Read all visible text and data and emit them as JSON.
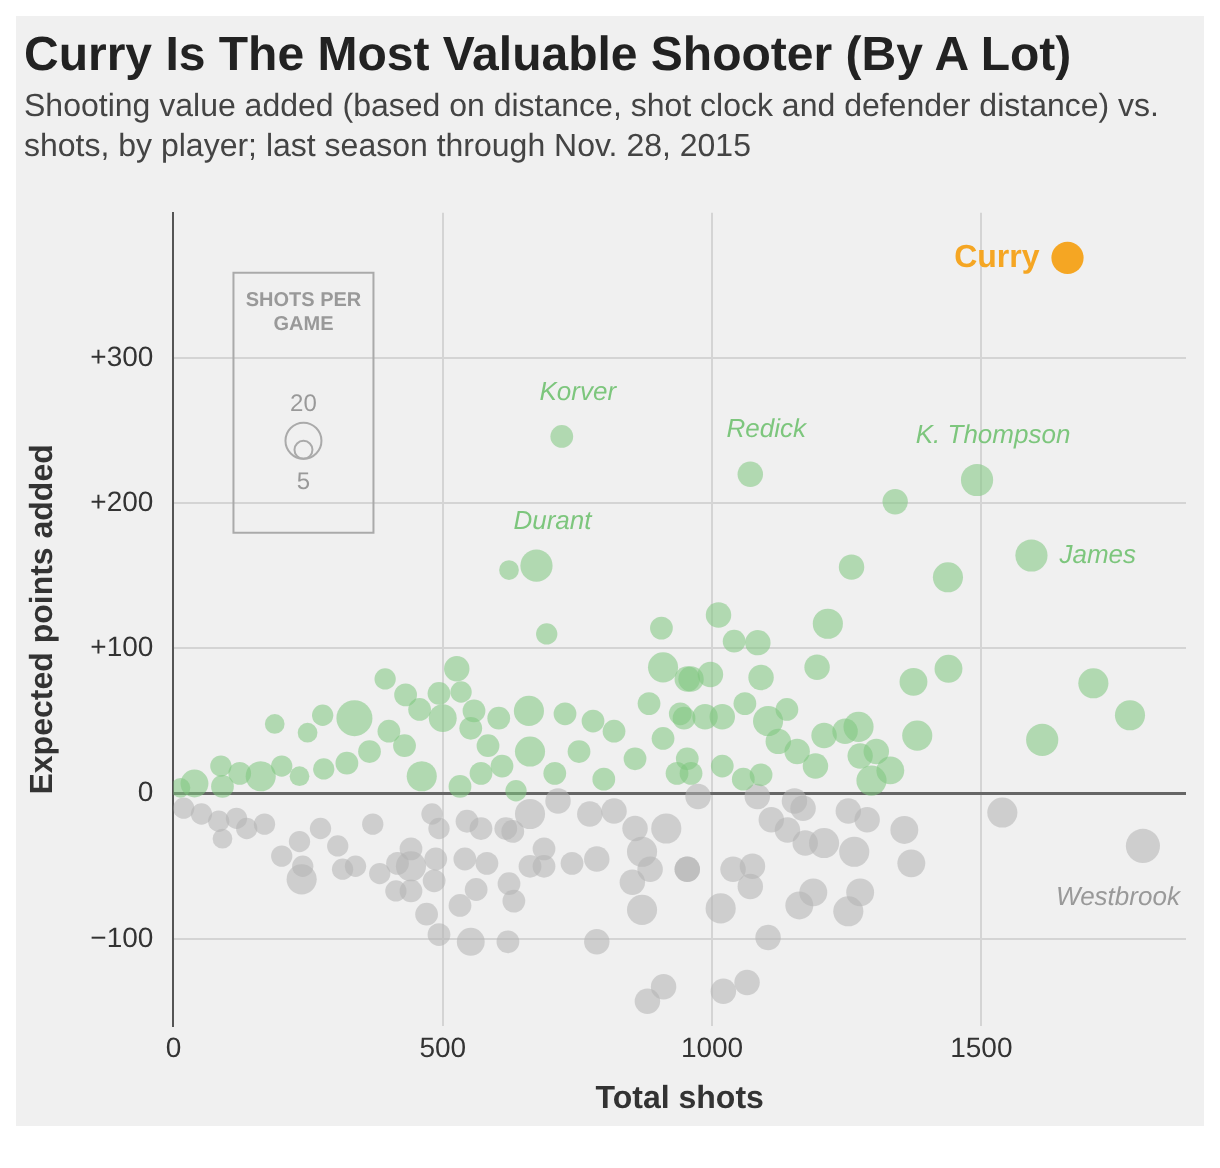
{
  "chart_data": {
    "type": "bubble",
    "title": "Curry Is The Most Valuable Shooter (By A Lot)",
    "subtitle": "Shooting value added (based on distance, shot clock and defender distance) vs. shots, by player; last season through Nov. 28, 2015",
    "xlabel": "Total shots",
    "ylabel": "Expected points added",
    "legend_title": "SHOTS PER GAME",
    "size_legend": [
      20,
      5
    ],
    "xlim": [
      0,
      1880
    ],
    "xticks": [
      0,
      500,
      1000,
      1500
    ],
    "ylim": [
      -160,
      400
    ],
    "yticks": [
      {
        "value": -100,
        "label": "−100"
      },
      0,
      {
        "value": 100,
        "label": "+100"
      },
      {
        "value": 200,
        "label": "+200"
      },
      {
        "value": 300,
        "label": "+300"
      }
    ],
    "grid": true,
    "legend": false,
    "series": [
      {
        "color": "#7dc67d",
        "x": [
          188,
          277,
          249,
          336,
          393,
          431,
          526,
          493,
          534,
          457,
          500,
          400,
          364,
          322,
          279,
          234,
          201,
          162,
          123,
          88,
          39,
          13,
          91,
          461,
          532,
          571,
          610,
          660,
          662,
          727,
          636,
          708,
          753,
          779,
          818,
          799,
          857,
          883,
          909,
          948,
          935,
          584,
          552,
          604,
          429,
          558,
          961,
          997,
          1091,
          1195,
          1374,
          1439,
          1708,
          1776,
          1613,
          1381,
          941,
          987,
          1019,
          1061,
          1104,
          1139,
          1123,
          1158,
          1208,
          1247,
          1272,
          1275,
          1305,
          1331,
          1296,
          1192,
          1091,
          1058,
          1019,
          954,
          961,
          906,
          909,
          954,
          693,
          1259,
          1438,
          1012,
          1041,
          1085,
          1215,
          1340,
          1492,
          1071,
          1593,
          721,
          674,
          623
        ],
        "values": [
          48,
          54,
          42,
          52,
          79,
          68,
          86,
          69,
          70,
          58,
          52,
          43,
          29,
          21,
          17,
          12,
          19,
          12,
          14,
          19,
          7,
          4,
          5,
          12,
          5,
          14,
          19,
          57,
          29,
          55,
          2,
          14,
          29,
          50,
          43,
          10,
          24,
          62,
          38,
          52,
          14,
          33,
          45,
          52,
          33,
          57,
          79,
          82,
          80,
          87,
          77,
          86,
          76,
          54,
          37,
          40,
          55,
          53,
          53,
          62,
          50,
          58,
          36,
          29,
          40,
          43,
          46,
          26,
          29,
          16,
          9,
          19,
          13,
          10,
          19,
          24,
          14,
          114,
          87,
          79,
          110,
          156,
          149,
          123,
          105,
          104,
          117,
          201,
          216,
          220,
          164,
          246,
          157,
          154
        ],
        "sizes": [
          6,
          7,
          6,
          20,
          7,
          8,
          10,
          8,
          7,
          8,
          12,
          8,
          8,
          8,
          7,
          6,
          7,
          14,
          8,
          7,
          12,
          6,
          8,
          14,
          8,
          8,
          8,
          14,
          14,
          8,
          7,
          8,
          8,
          8,
          8,
          8,
          8,
          8,
          8,
          8,
          8,
          8,
          8,
          8,
          8,
          8,
          10,
          10,
          10,
          10,
          12,
          12,
          14,
          14,
          16,
          14,
          8,
          10,
          10,
          8,
          14,
          8,
          10,
          10,
          10,
          10,
          14,
          10,
          10,
          12,
          14,
          10,
          8,
          8,
          8,
          8,
          8,
          8,
          14,
          10,
          7,
          10,
          14,
          10,
          8,
          10,
          14,
          10,
          16,
          10,
          16,
          8,
          16,
          6
        ]
      },
      {
        "color": "#b3b3b3",
        "x": [
          19,
          52,
          84,
          117,
          136,
          91,
          169,
          201,
          240,
          234,
          273,
          305,
          314,
          338,
          238,
          370,
          383,
          416,
          441,
          441,
          413,
          441,
          480,
          493,
          487,
          484,
          470,
          493,
          552,
          532,
          562,
          545,
          571,
          582,
          541,
          617,
          630,
          623,
          632,
          621,
          662,
          688,
          688,
          662,
          740,
          786,
          786,
          714,
          773,
          818,
          857,
          870,
          885,
          852,
          870,
          915,
          954,
          880,
          910,
          974,
          1084,
          1153,
          1169,
          1110,
          1140,
          1173,
          1208,
          1253,
          1288,
          1264,
          1357,
          1370,
          954,
          1039,
          1071,
          1075,
          1016,
          1162,
          1188,
          1253,
          1275,
          1104,
          1021,
          1065,
          1539,
          1800
        ],
        "values": [
          -10,
          -14,
          -19,
          -17,
          -24,
          -31,
          -21,
          -43,
          -50,
          -33,
          -24,
          -36,
          -52,
          -50,
          -59,
          -21,
          -55,
          -48,
          -38,
          -50,
          -67,
          -67,
          -14,
          -24,
          -45,
          -60,
          -83,
          -97,
          -102,
          -77,
          -66,
          -19,
          -24,
          -48,
          -45,
          -24,
          -26,
          -62,
          -74,
          -102,
          -14,
          -38,
          -50,
          -50,
          -48,
          -45,
          -102,
          -5,
          -14,
          -12,
          -24,
          -40,
          -52,
          -61,
          -80,
          -24,
          -52,
          -143,
          -133,
          -2,
          -2,
          -5,
          -10,
          -18,
          -25,
          -34,
          -34,
          -12,
          -18,
          -40,
          -25,
          -48,
          -52,
          -52,
          -64,
          -50,
          -79,
          -77,
          -68,
          -81,
          -68,
          -99,
          -136,
          -130,
          -13,
          -36
        ],
        "sizes": [
          7,
          7,
          7,
          7,
          7,
          6,
          7,
          7,
          7,
          7,
          7,
          7,
          7,
          7,
          14,
          7,
          7,
          8,
          8,
          14,
          7,
          8,
          7,
          7,
          8,
          8,
          8,
          8,
          12,
          8,
          8,
          8,
          8,
          8,
          8,
          8,
          8,
          8,
          8,
          8,
          14,
          8,
          8,
          8,
          8,
          10,
          10,
          10,
          10,
          10,
          10,
          14,
          10,
          10,
          14,
          14,
          10,
          10,
          10,
          10,
          10,
          10,
          10,
          10,
          10,
          10,
          14,
          10,
          10,
          14,
          12,
          12,
          10,
          10,
          10,
          10,
          14,
          12,
          12,
          14,
          12,
          10,
          10,
          10,
          14,
          18
        ]
      },
      {
        "name": "Curry",
        "color": "#f5a623",
        "x": [
          1660
        ],
        "values": [
          369
        ],
        "sizes": [
          16
        ]
      }
    ],
    "annotations": [
      {
        "text": "Korver",
        "x": 721,
        "y": 246
      },
      {
        "text": "Durant",
        "x": 674,
        "y": 157
      },
      {
        "text": "Redick",
        "x": 1071,
        "y": 220
      },
      {
        "text": "K. Thompson",
        "x": 1492,
        "y": 216
      },
      {
        "text": "James",
        "x": 1593,
        "y": 164
      },
      {
        "text": "Westbrook",
        "x": 1800,
        "y": -36
      }
    ]
  }
}
